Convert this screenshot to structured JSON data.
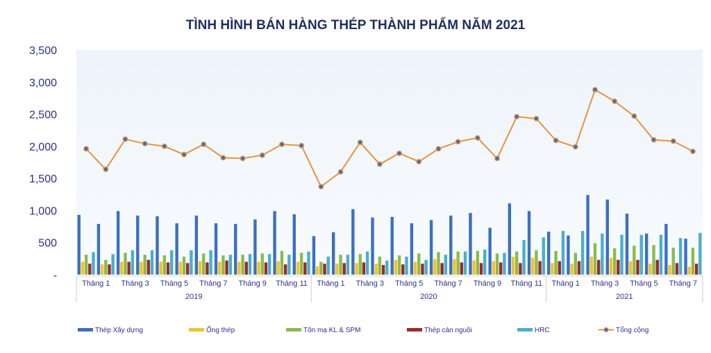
{
  "chart_data": {
    "type": "bar",
    "title": "TÌNH HÌNH BÁN HÀNG THÉP THÀNH PHẨM NĂM 2021",
    "ylim": [
      0,
      3500
    ],
    "yticks": [
      "-",
      "500",
      "1,000",
      "1,500",
      "2,000",
      "2,500",
      "3,000",
      "3,500"
    ],
    "year_groups": [
      {
        "label": "2019",
        "count": 12
      },
      {
        "label": "2020",
        "count": 12
      },
      {
        "label": "2021",
        "count": 8
      }
    ],
    "x_tick_labels": [
      "Tháng 1",
      "",
      "Tháng 3",
      "",
      "Tháng 5",
      "",
      "Tháng 7",
      "",
      "Tháng 9",
      "",
      "Tháng 11",
      "",
      "Tháng 1",
      "",
      "Tháng 3",
      "",
      "Tháng 5",
      "",
      "Tháng 7",
      "",
      "Tháng 9",
      "",
      "Tháng 11",
      "",
      "Tháng 1",
      "",
      "Tháng 3",
      "",
      "Tháng 5",
      "",
      "Tháng 7",
      ""
    ],
    "series": [
      {
        "name": "Thép Xây dựng",
        "color": "#3b6fc4",
        "kind": "bar",
        "values": [
          930,
          790,
          990,
          920,
          910,
          800,
          920,
          800,
          790,
          860,
          990,
          940,
          600,
          660,
          1020,
          890,
          900,
          800,
          850,
          920,
          960,
          730,
          1110,
          990,
          670,
          610,
          1240,
          1170,
          950,
          640,
          790,
          560
        ]
      },
      {
        "name": "Ống thép",
        "color": "#f2c12e",
        "kind": "bar",
        "values": [
          200,
          160,
          200,
          200,
          200,
          200,
          210,
          200,
          200,
          200,
          210,
          200,
          130,
          170,
          180,
          170,
          230,
          200,
          240,
          240,
          220,
          210,
          280,
          260,
          180,
          170,
          280,
          260,
          210,
          170,
          150,
          120
        ]
      },
      {
        "name": "Tôn mạ KL & SPM",
        "color": "#8dbb4a",
        "kind": "bar",
        "values": [
          310,
          230,
          340,
          310,
          300,
          280,
          330,
          300,
          310,
          330,
          370,
          340,
          200,
          310,
          320,
          280,
          300,
          330,
          350,
          360,
          370,
          330,
          360,
          380,
          370,
          340,
          490,
          410,
          450,
          460,
          420,
          420
        ]
      },
      {
        "name": "Thép cán nguội",
        "color": "#9b2a2a",
        "kind": "bar",
        "values": [
          170,
          160,
          200,
          230,
          190,
          180,
          190,
          220,
          200,
          190,
          160,
          190,
          170,
          180,
          190,
          150,
          160,
          170,
          180,
          190,
          180,
          190,
          180,
          210,
          210,
          210,
          230,
          230,
          230,
          230,
          180,
          170
        ]
      },
      {
        "name": "HRC",
        "color": "#4aaed1",
        "kind": "bar",
        "values": [
          350,
          320,
          380,
          380,
          380,
          380,
          380,
          310,
          320,
          320,
          310,
          360,
          280,
          310,
          360,
          220,
          280,
          230,
          310,
          360,
          390,
          340,
          540,
          580,
          680,
          680,
          640,
          620,
          620,
          620,
          570,
          650
        ]
      },
      {
        "name": "Tổng cộng",
        "color": "#e8923c",
        "kind": "line",
        "values": [
          1960,
          1640,
          2110,
          2040,
          2000,
          1870,
          2030,
          1820,
          1810,
          1860,
          2030,
          2010,
          1370,
          1600,
          2060,
          1720,
          1890,
          1760,
          1960,
          2070,
          2130,
          1810,
          2460,
          2430,
          2090,
          1990,
          2880,
          2700,
          2470,
          2100,
          2080,
          1920
        ]
      }
    ],
    "legend_position": "bottom",
    "grid": false
  }
}
